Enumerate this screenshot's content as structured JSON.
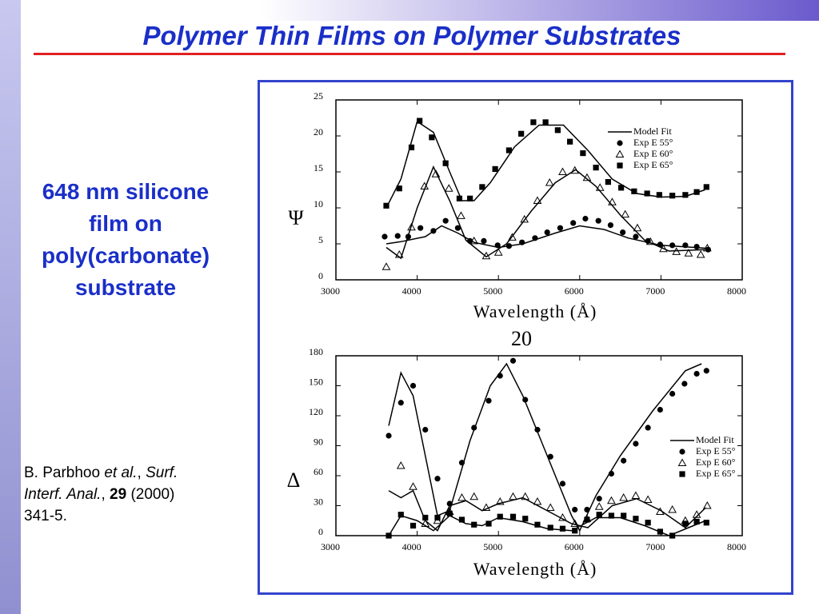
{
  "slide": {
    "title": "Polymer Thin Films on Polymer Substrates",
    "caption": [
      "648 nm silicone",
      "film on",
      "poly(carbonate)",
      "substrate"
    ],
    "citation": [
      "B. Parbhoo ",
      "et al.",
      ", ",
      "Surf.",
      " ",
      "Interf. Anal.",
      ", ",
      "29",
      " (2000)",
      " 341-5."
    ],
    "page_number": "20"
  },
  "chart_data": [
    {
      "type": "scatter-line",
      "y_label": "Ψ",
      "x_label": "Wavelength (Å)",
      "xlim": [
        3000,
        8000
      ],
      "xticks": [
        3000,
        4000,
        5000,
        6000,
        7000,
        8000
      ],
      "ylim": [
        0,
        25
      ],
      "yticks": [
        0,
        5,
        10,
        15,
        20,
        25
      ],
      "legend": "upper right",
      "series": [
        {
          "name": "Model Fit",
          "marker": "line",
          "color": "#000000",
          "x": [
            3620,
            3800,
            4000,
            4200,
            4400,
            4550,
            4700,
            4900,
            5200,
            5500,
            5800,
            6100,
            6400,
            6700,
            7000,
            7300,
            7540,
            null,
            3620,
            3800,
            4000,
            4200,
            4400,
            4600,
            4850,
            5100,
            5400,
            5700,
            5950,
            6200,
            6500,
            6800,
            7100,
            7540,
            null,
            3620,
            3800,
            4100,
            4300,
            4500,
            4700,
            5000,
            5300,
            5700,
            6000,
            6300,
            6600,
            7000,
            7540
          ],
          "values": [
            10,
            14,
            22,
            20.5,
            15,
            11,
            11,
            13.5,
            18.5,
            21.5,
            21.5,
            18,
            14,
            12,
            11.5,
            11.6,
            12.5,
            null,
            4.5,
            3,
            10,
            15.7,
            11,
            5.5,
            3.2,
            5,
            9.5,
            13.5,
            15.3,
            13,
            9,
            5.5,
            4,
            4.2,
            null,
            5,
            5.3,
            6,
            7.5,
            6.5,
            5.2,
            4.5,
            5,
            6.5,
            7.5,
            7,
            5.8,
            4.8,
            4.4
          ]
        },
        {
          "name": "Exp E 55°",
          "marker": "circle",
          "color": "#000000",
          "x": [
            3600,
            3760,
            3890,
            4040,
            4200,
            4350,
            4500,
            4650,
            4820,
            4990,
            5130,
            5290,
            5450,
            5600,
            5760,
            5920,
            6070,
            6230,
            6380,
            6530,
            6690,
            6840,
            6990,
            7140,
            7300,
            7440,
            7580
          ],
          "values": [
            6,
            6.1,
            6,
            7.2,
            6.8,
            8.2,
            7.2,
            5.4,
            5.4,
            4.8,
            4.7,
            5.2,
            5.8,
            6.6,
            7.2,
            7.9,
            8.5,
            8.2,
            7.6,
            6.6,
            6,
            5.4,
            4.9,
            4.8,
            4.8,
            4.6,
            4.2
          ]
        },
        {
          "name": "Exp E 60°",
          "marker": "triangle",
          "color": "#000000",
          "x": [
            3620,
            3780,
            3930,
            4090,
            4230,
            4390,
            4540,
            4700,
            4850,
            5000,
            5170,
            5320,
            5480,
            5630,
            5790,
            5940,
            6090,
            6250,
            6400,
            6560,
            6710,
            6870,
            7030,
            7190,
            7340,
            7490,
            7570
          ],
          "values": [
            1.8,
            3.5,
            7.3,
            13,
            14.7,
            12.7,
            8.9,
            5.4,
            3.3,
            3.8,
            5.9,
            8.4,
            11,
            13.5,
            15,
            15.2,
            14.2,
            12.8,
            10.8,
            9.1,
            7.2,
            5.3,
            4.3,
            3.9,
            3.7,
            3.5,
            4.4
          ]
        },
        {
          "name": "Exp E 65°",
          "marker": "square",
          "color": "#000000",
          "x": [
            3620,
            3780,
            3930,
            4030,
            4180,
            4350,
            4520,
            4650,
            4800,
            4960,
            5130,
            5280,
            5430,
            5580,
            5730,
            5880,
            6040,
            6200,
            6350,
            6510,
            6670,
            6830,
            6980,
            7140,
            7300,
            7440,
            7560
          ],
          "values": [
            10.3,
            12.7,
            18.4,
            22.1,
            19.8,
            16.2,
            11.3,
            11.3,
            12.9,
            15.4,
            18,
            20.3,
            21.9,
            21.9,
            20.8,
            19.2,
            17.6,
            15.6,
            13.6,
            12.8,
            12.3,
            12,
            11.8,
            11.7,
            11.8,
            12.2,
            12.9
          ]
        }
      ]
    },
    {
      "type": "scatter-line",
      "y_label": "Δ",
      "x_label": "Wavelength (Å)",
      "xlim": [
        3000,
        8000
      ],
      "xticks": [
        3000,
        4000,
        5000,
        6000,
        7000,
        8000
      ],
      "ylim": [
        0,
        180
      ],
      "yticks": [
        0,
        30,
        60,
        90,
        120,
        150,
        180
      ],
      "legend": "right",
      "series": [
        {
          "name": "Model Fit",
          "marker": "line",
          "color": "#000000",
          "x": [
            3650,
            3800,
            3950,
            4100,
            4250,
            4400,
            4650,
            4900,
            5100,
            5300,
            5600,
            5900,
            6000,
            6200,
            6500,
            6900,
            7300,
            7500,
            null,
            3650,
            3800,
            3950,
            4100,
            4250,
            4400,
            4600,
            4800,
            5000,
            5300,
            5600,
            5900,
            6100,
            6400,
            6700,
            7000,
            7300,
            7550,
            null,
            3650,
            3800,
            4000,
            4200,
            4400,
            4600,
            4800,
            5000,
            5300,
            5600,
            5900,
            6200,
            6500,
            6800,
            7100,
            7400,
            7550
          ],
          "values": [
            110,
            163,
            140,
            80,
            20,
            25,
            95,
            150,
            172,
            140,
            80,
            20,
            5,
            40,
            80,
            125,
            165,
            172,
            null,
            45,
            38,
            45,
            15,
            5,
            30,
            35,
            25,
            32,
            38,
            25,
            12,
            8,
            30,
            37,
            25,
            8,
            28,
            null,
            0,
            20,
            15,
            5,
            20,
            12,
            10,
            18,
            14,
            7,
            5,
            18,
            18,
            10,
            0,
            10,
            15
          ]
        },
        {
          "name": "Exp E 55°",
          "marker": "circle",
          "color": "#000000",
          "x": [
            3650,
            3800,
            3950,
            4100,
            4250,
            4400,
            4550,
            4700,
            4880,
            5020,
            5180,
            5330,
            5480,
            5640,
            5790,
            5940,
            6090,
            6240,
            6390,
            6540,
            6690,
            6840,
            6990,
            7140,
            7290,
            7440,
            7560
          ],
          "values": [
            100,
            133,
            150,
            106,
            57,
            32,
            73,
            108,
            135,
            160,
            175,
            136,
            106,
            79,
            52,
            26,
            26,
            37,
            62,
            75,
            92,
            108,
            126,
            142,
            152,
            162,
            165
          ]
        },
        {
          "name": "Exp E 60°",
          "marker": "triangle",
          "color": "#000000",
          "x": [
            3800,
            3950,
            4100,
            4250,
            4400,
            4550,
            4700,
            4850,
            5020,
            5180,
            5330,
            5480,
            5640,
            5790,
            5940,
            6090,
            6240,
            6390,
            6540,
            6690,
            6840,
            6990,
            7140,
            7300,
            7440,
            7570
          ],
          "values": [
            70,
            49,
            12,
            15,
            24,
            38,
            39,
            28,
            34,
            39,
            39,
            34,
            28,
            18,
            12,
            17,
            29,
            35,
            38,
            40,
            36,
            24,
            26,
            15,
            21,
            30
          ]
        },
        {
          "name": "Exp E 65°",
          "marker": "square",
          "color": "#000000",
          "x": [
            3650,
            3800,
            3950,
            4100,
            4250,
            4400,
            4550,
            4700,
            4880,
            5020,
            5180,
            5330,
            5480,
            5640,
            5790,
            5940,
            6090,
            6240,
            6390,
            6540,
            6690,
            6840,
            6990,
            7140,
            7300,
            7440,
            7560
          ],
          "values": [
            0,
            21,
            10,
            18,
            18,
            22,
            16,
            11,
            12,
            19,
            19,
            17,
            11,
            8,
            7,
            5,
            16,
            21,
            20,
            20,
            17,
            13,
            4,
            0,
            12,
            14,
            13
          ]
        }
      ]
    }
  ]
}
